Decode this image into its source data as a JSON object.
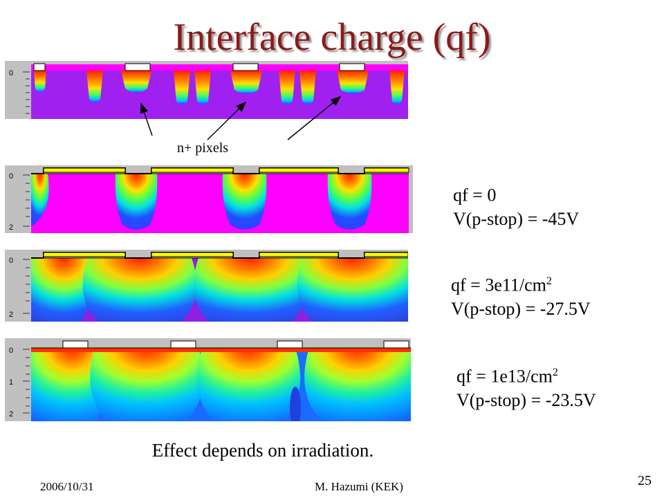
{
  "slide": {
    "title": "Interface charge (qf)",
    "annotation": "n+ pixels",
    "caption": "Effect depends on irradiation.",
    "footer_date": "2006/10/31",
    "footer_author": "M. Hazumi (KEK)",
    "page_number": "25"
  },
  "panels": [
    {
      "axis_ticks": [
        "0"
      ]
    },
    {
      "axis_ticks": [
        "0",
        "2"
      ],
      "qf_label": "qf = 0",
      "qf_unit_sup": "",
      "vstop_label": "V(p-stop) = -45V"
    },
    {
      "axis_ticks": [
        "0",
        "2"
      ],
      "qf_label": "qf = 3e11/cm",
      "qf_unit_sup": "2",
      "vstop_label": "V(p-stop) = -27.5V"
    },
    {
      "axis_ticks": [
        "0",
        "1",
        "2"
      ],
      "qf_label": "qf = 1e13/cm",
      "qf_unit_sup": "2",
      "vstop_label": "V(p-stop) = -23.5V"
    }
  ],
  "colors": {
    "title": "#8b1a1a",
    "magenta": "#ff00ff",
    "violet": "#a020f0",
    "frame": "#c0c0c0"
  }
}
